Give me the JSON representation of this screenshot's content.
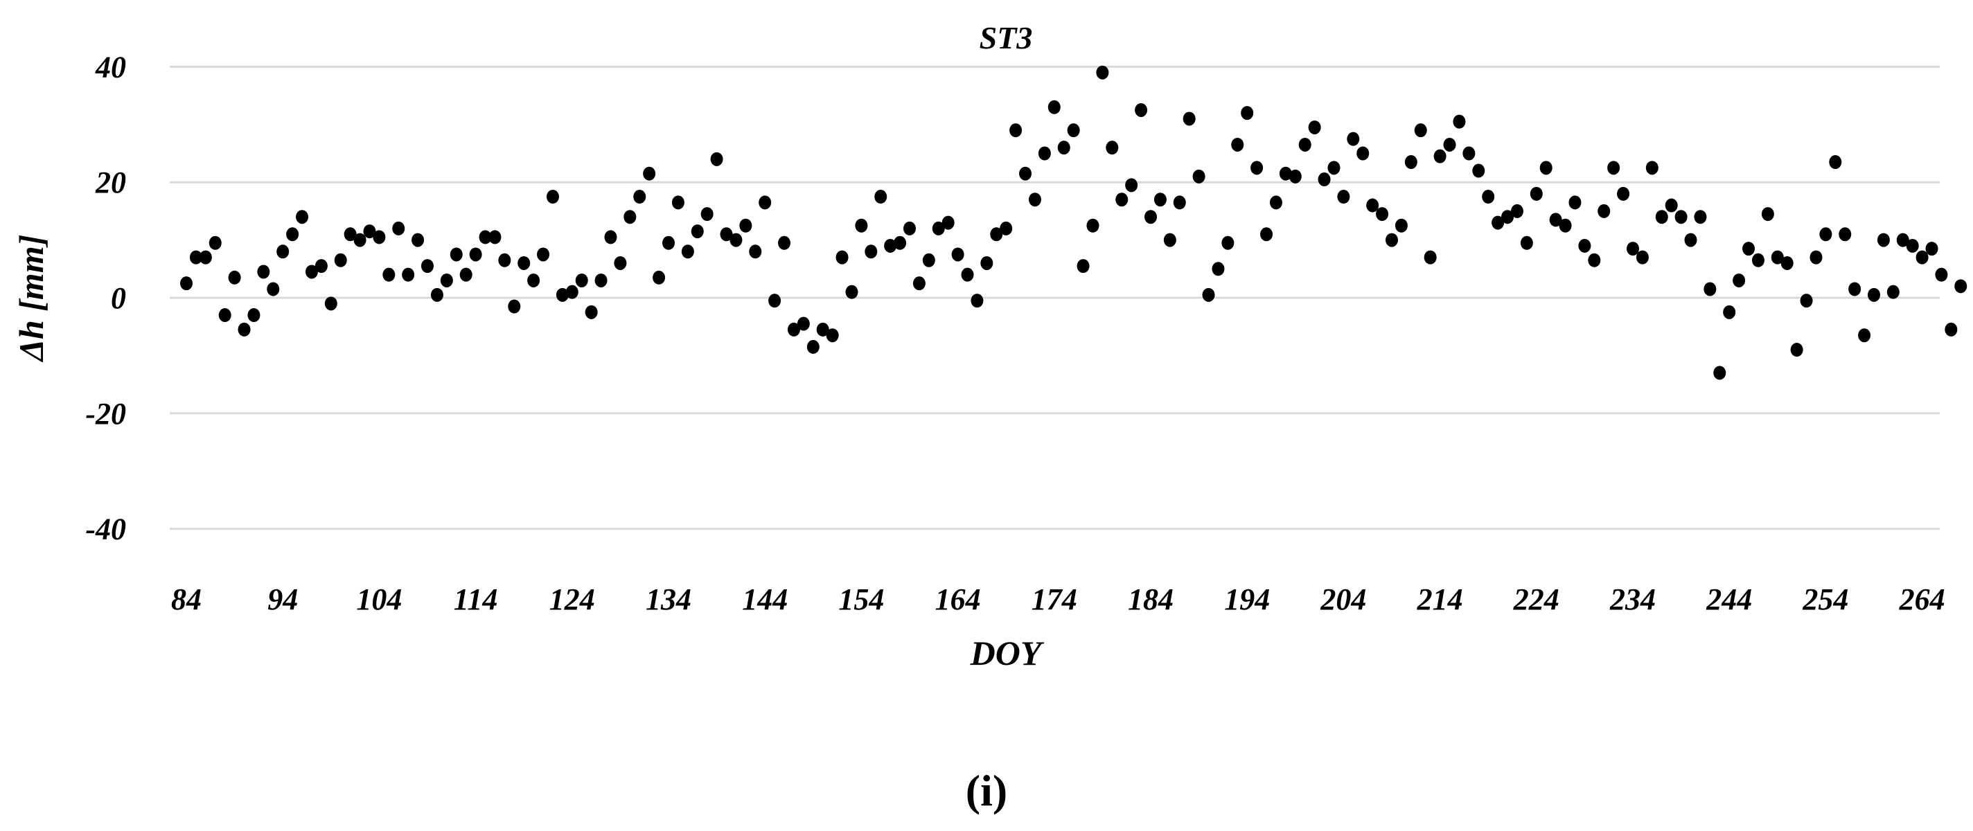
{
  "figure": {
    "caption": "(i)"
  },
  "chart_data": {
    "type": "scatter",
    "title": "ST3",
    "xlabel": "DOY",
    "ylabel": "Δh [mm]",
    "xlim": [
      84,
      268
    ],
    "ylim": [
      -40,
      40
    ],
    "xticks": [
      84,
      94,
      104,
      114,
      124,
      134,
      144,
      154,
      164,
      174,
      184,
      194,
      204,
      214,
      224,
      234,
      244,
      254,
      264
    ],
    "yticks": [
      40,
      20,
      0,
      -20,
      -40
    ],
    "grid": "horizontal",
    "legend": null,
    "marker_color": "#000000",
    "grid_color": "#d9d9d9",
    "series": [
      {
        "name": "ST3",
        "x": [
          84,
          85,
          86,
          87,
          88,
          89,
          90,
          91,
          92,
          93,
          94,
          95,
          96,
          97,
          98,
          99,
          100,
          101,
          102,
          103,
          104,
          105,
          106,
          107,
          108,
          109,
          110,
          111,
          112,
          113,
          114,
          115,
          116,
          117,
          118,
          119,
          120,
          121,
          122,
          123,
          124,
          125,
          126,
          127,
          128,
          129,
          130,
          131,
          132,
          133,
          134,
          135,
          136,
          137,
          138,
          139,
          140,
          141,
          142,
          143,
          144,
          145,
          146,
          147,
          148,
          149,
          150,
          151,
          152,
          153,
          154,
          155,
          156,
          157,
          158,
          159,
          160,
          161,
          162,
          163,
          164,
          165,
          166,
          167,
          168,
          169,
          170,
          171,
          172,
          173,
          174,
          175,
          176,
          177,
          178,
          179,
          180,
          181,
          182,
          183,
          184,
          185,
          186,
          187,
          188,
          189,
          190,
          191,
          192,
          193,
          194,
          195,
          196,
          197,
          198,
          199,
          200,
          201,
          202,
          203,
          204,
          205,
          206,
          207,
          208,
          209,
          210,
          211,
          212,
          213,
          214,
          215,
          216,
          217,
          218,
          219,
          220,
          221,
          222,
          223,
          224,
          225,
          226,
          227,
          228,
          229,
          230,
          231,
          232,
          233,
          234,
          235,
          236,
          237,
          238,
          239,
          240,
          241,
          242,
          243,
          244,
          245,
          246,
          247,
          248,
          249,
          250,
          251,
          252,
          253,
          254,
          255,
          256,
          257,
          258,
          259,
          260,
          261,
          262,
          263,
          264,
          265,
          266,
          267,
          268
        ],
        "y": [
          2.5,
          7,
          7,
          9.5,
          -3,
          3.5,
          -5.5,
          -3,
          4.5,
          1.5,
          8,
          11,
          14,
          4.5,
          5.5,
          -1,
          6.5,
          11,
          10,
          11.5,
          10.5,
          4,
          12,
          4,
          10,
          5.5,
          0.5,
          3,
          7.5,
          4,
          7.5,
          10.5,
          10.5,
          6.5,
          -1.5,
          6,
          3,
          7.5,
          17.5,
          0.5,
          1,
          3,
          -2.5,
          3,
          10.5,
          6,
          14,
          17.5,
          21.5,
          3.5,
          9.5,
          16.5,
          8,
          11.5,
          14.5,
          24,
          11,
          10,
          12.5,
          8,
          16.5,
          -0.5,
          9.5,
          -5.5,
          -4.5,
          -8.5,
          -5.5,
          -6.5,
          7,
          1,
          12.5,
          8,
          17.5,
          9,
          9.5,
          12,
          2.5,
          6.5,
          12,
          13,
          7.5,
          4,
          -0.5,
          6,
          11,
          12,
          29,
          21.5,
          17,
          25,
          33,
          26,
          29,
          5.5,
          12.5,
          39,
          26,
          17,
          19.5,
          32.5,
          14,
          17,
          10,
          16.5,
          31,
          21,
          0.5,
          5,
          9.5,
          26.5,
          32,
          22.5,
          11,
          16.5,
          21.5,
          21,
          26.5,
          29.5,
          20.5,
          22.5,
          17.5,
          27.5,
          25,
          16,
          14.5,
          10,
          12.5,
          23.5,
          29,
          7,
          24.5,
          26.5,
          30.5,
          25,
          22,
          17.5,
          13,
          14,
          15,
          9.5,
          18,
          22.5,
          13.5,
          12.5,
          16.5,
          9,
          6.5,
          15,
          22.5,
          18,
          8.5,
          7,
          22.5,
          14,
          16,
          14,
          10,
          14,
          1.5,
          -13,
          -2.5,
          3,
          8.5,
          6.5,
          14.5,
          7,
          6,
          -9,
          -0.5,
          7,
          11,
          23.5,
          11,
          1.5,
          -6.5,
          0.5,
          10,
          1,
          10,
          9,
          7,
          8.5,
          4,
          -5.5,
          2
        ]
      }
    ]
  }
}
